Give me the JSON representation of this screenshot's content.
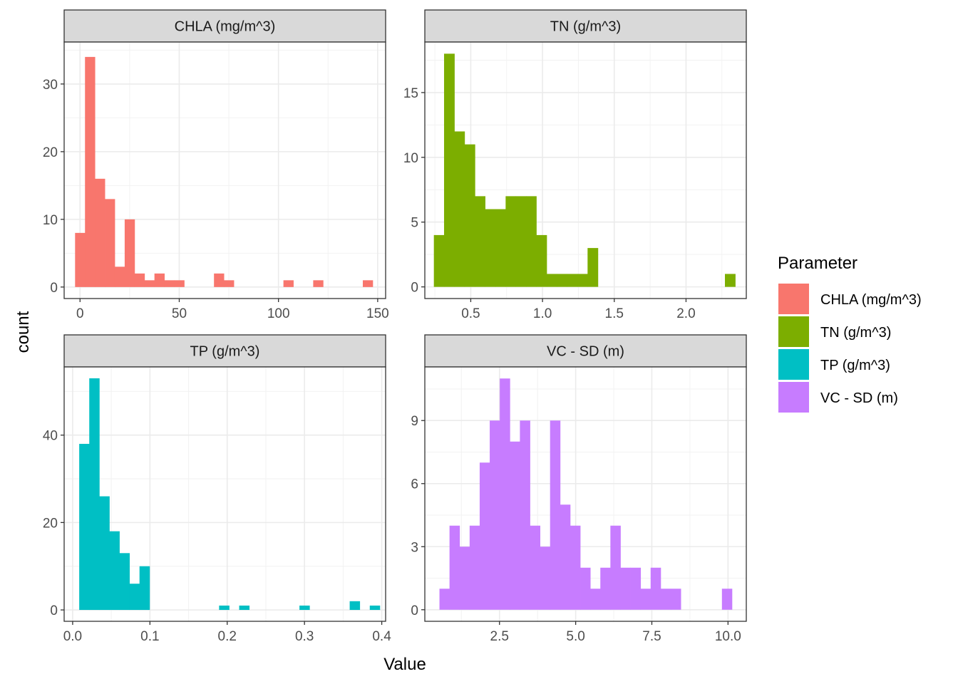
{
  "chart_data": {
    "type": "bar",
    "xlabel": "Value",
    "ylabel": "count",
    "grid": true,
    "legend": {
      "title": "Parameter",
      "placement": "right",
      "entries": [
        {
          "label": "CHLA (mg/m^3)",
          "color": "#F8766D"
        },
        {
          "label": "TN (g/m^3)",
          "color": "#7CAE00"
        },
        {
          "label": "TP (g/m^3)",
          "color": "#00BFC4"
        },
        {
          "label": "VC - SD (m)",
          "color": "#C77CFF"
        }
      ]
    },
    "panels": [
      {
        "title": "CHLA (mg/m^3)",
        "color": "#F8766D",
        "xlim": [
          -8,
          154
        ],
        "ylim": [
          -1.7,
          36.2
        ],
        "xticks": [
          0,
          50,
          100,
          150
        ],
        "xtick_labels": [
          "0",
          "50",
          "100",
          "150"
        ],
        "xminor": [
          25,
          75,
          125
        ],
        "yticks": [
          0,
          10,
          20,
          30
        ],
        "ytick_labels": [
          "0",
          "10",
          "20",
          "30"
        ],
        "yminor": [
          5,
          15,
          25,
          35
        ],
        "bins": [
          [
            -2.5,
            2.5,
            8
          ],
          [
            2.5,
            7.5,
            34
          ],
          [
            7.5,
            12.5,
            16
          ],
          [
            12.5,
            17.5,
            13
          ],
          [
            17.5,
            22.5,
            3
          ],
          [
            22.5,
            27.5,
            10
          ],
          [
            27.5,
            32.5,
            2
          ],
          [
            32.5,
            37.5,
            1
          ],
          [
            37.5,
            42.5,
            2
          ],
          [
            42.5,
            47.5,
            1
          ],
          [
            47.5,
            52.5,
            1
          ],
          [
            67.5,
            72.5,
            2
          ],
          [
            72.5,
            77.5,
            1
          ],
          [
            102.5,
            107.5,
            1
          ],
          [
            117.5,
            122.5,
            1
          ],
          [
            142.5,
            147.5,
            1
          ]
        ]
      },
      {
        "title": "TN (g/m^3)",
        "color": "#7CAE00",
        "xlim": [
          0.18,
          2.42
        ],
        "ylim": [
          -0.9,
          18.9
        ],
        "xticks": [
          0.5,
          1.0,
          1.5,
          2.0
        ],
        "xtick_labels": [
          "0.5",
          "1.0",
          "1.5",
          "2.0"
        ],
        "xminor": [
          0.25,
          0.75,
          1.25,
          1.75,
          2.25
        ],
        "yticks": [
          0,
          5,
          10,
          15
        ],
        "ytick_labels": [
          "0",
          "5",
          "10",
          "15"
        ],
        "yminor": [
          2.5,
          7.5,
          12.5,
          17.5
        ],
        "bins": [
          [
            0.243,
            0.314,
            4
          ],
          [
            0.314,
            0.386,
            18
          ],
          [
            0.386,
            0.457,
            12
          ],
          [
            0.457,
            0.529,
            11
          ],
          [
            0.529,
            0.6,
            7
          ],
          [
            0.6,
            0.671,
            6
          ],
          [
            0.671,
            0.743,
            6
          ],
          [
            0.743,
            0.814,
            7
          ],
          [
            0.814,
            0.886,
            7
          ],
          [
            0.886,
            0.957,
            7
          ],
          [
            0.957,
            1.029,
            4
          ],
          [
            1.029,
            1.1,
            1
          ],
          [
            1.1,
            1.171,
            1
          ],
          [
            1.171,
            1.243,
            1
          ],
          [
            1.243,
            1.314,
            1
          ],
          [
            1.314,
            1.386,
            3
          ],
          [
            2.271,
            2.343,
            1
          ]
        ]
      },
      {
        "title": "TP (g/m^3)",
        "color": "#00BFC4",
        "xlim": [
          -0.011,
          0.405
        ],
        "ylim": [
          -2.6,
          55.6
        ],
        "xticks": [
          0.0,
          0.1,
          0.2,
          0.3,
          0.4
        ],
        "xtick_labels": [
          "0.0",
          "0.1",
          "0.2",
          "0.3",
          "0.4"
        ],
        "xminor": [
          0.05,
          0.15,
          0.25,
          0.35
        ],
        "yticks": [
          0,
          20,
          40
        ],
        "ytick_labels": [
          "0",
          "20",
          "40"
        ],
        "yminor": [
          10,
          30,
          50
        ],
        "bins": [
          [
            0.0085,
            0.0215,
            38
          ],
          [
            0.0215,
            0.0345,
            53
          ],
          [
            0.0345,
            0.0475,
            26
          ],
          [
            0.0475,
            0.0605,
            18
          ],
          [
            0.0605,
            0.0735,
            13
          ],
          [
            0.0735,
            0.0865,
            6
          ],
          [
            0.0865,
            0.0995,
            10
          ],
          [
            0.1895,
            0.2025,
            1
          ],
          [
            0.2155,
            0.2285,
            1
          ],
          [
            0.2935,
            0.3065,
            1
          ],
          [
            0.3585,
            0.3715,
            2
          ],
          [
            0.3845,
            0.3975,
            1
          ]
        ]
      },
      {
        "title": "VC - SD (m)",
        "color": "#C77CFF",
        "xlim": [
          0.05,
          10.6
        ],
        "ylim": [
          -0.55,
          11.55
        ],
        "xticks": [
          2.5,
          5.0,
          7.5,
          10.0
        ],
        "xtick_labels": [
          "2.5",
          "5.0",
          "7.5",
          "10.0"
        ],
        "xminor": [
          1.25,
          3.75,
          6.25,
          8.75
        ],
        "yticks": [
          0,
          3,
          6,
          9
        ],
        "ytick_labels": [
          "0",
          "3",
          "6",
          "9"
        ],
        "yminor": [
          1.5,
          4.5,
          7.5,
          10.5
        ],
        "bins": [
          [
            0.53,
            0.86,
            1
          ],
          [
            0.86,
            1.19,
            4
          ],
          [
            1.19,
            1.52,
            3
          ],
          [
            1.52,
            1.85,
            4
          ],
          [
            1.85,
            2.18,
            7
          ],
          [
            2.18,
            2.51,
            9
          ],
          [
            2.51,
            2.84,
            11
          ],
          [
            2.84,
            3.17,
            8
          ],
          [
            3.17,
            3.5,
            9
          ],
          [
            3.5,
            3.83,
            4
          ],
          [
            3.83,
            4.16,
            3
          ],
          [
            4.16,
            4.49,
            9
          ],
          [
            4.49,
            4.82,
            5
          ],
          [
            4.82,
            5.15,
            4
          ],
          [
            5.15,
            5.48,
            2
          ],
          [
            5.48,
            5.81,
            1
          ],
          [
            5.81,
            6.14,
            2
          ],
          [
            6.14,
            6.47,
            4
          ],
          [
            6.47,
            6.8,
            2
          ],
          [
            6.8,
            7.13,
            2
          ],
          [
            7.13,
            7.46,
            1
          ],
          [
            7.46,
            7.79,
            2
          ],
          [
            7.79,
            8.12,
            1
          ],
          [
            8.12,
            8.45,
            1
          ],
          [
            9.8,
            10.13,
            1
          ]
        ]
      }
    ]
  }
}
